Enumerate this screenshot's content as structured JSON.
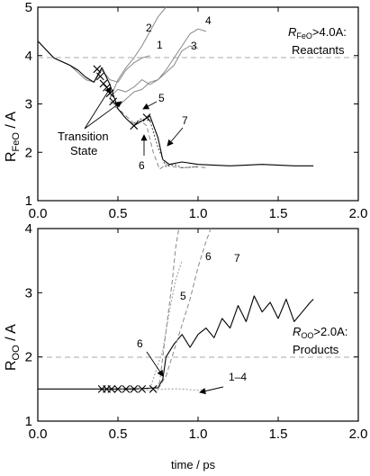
{
  "chart_data": [
    {
      "type": "line",
      "ylabel": "R_FeO / A",
      "ylabel_main": "R",
      "ylabel_sub": "FeO",
      "ylabel_unit": " / A",
      "xlim": [
        0.0,
        2.0
      ],
      "ylim": [
        1,
        5
      ],
      "xticks": [
        "0.0",
        "0.5",
        "1.0",
        "1.5",
        "2.0"
      ],
      "yticks": [
        "1",
        "2",
        "3",
        "4",
        "5"
      ],
      "grid": false,
      "threshold": {
        "y": 4.0,
        "label_line1": "R_FeO>4.0A:",
        "label_line1_main": "R",
        "label_line1_sub": "FeO",
        "label_line1_rest": ">4.0A:",
        "label_line2": "Reactants"
      },
      "annotations": [
        {
          "text_lines": [
            "Transition",
            "State"
          ]
        },
        {
          "text": "1"
        },
        {
          "text": "2"
        },
        {
          "text": "3"
        },
        {
          "text": "4"
        },
        {
          "text": "5"
        },
        {
          "text": "6"
        },
        {
          "text": "7"
        }
      ],
      "transition_state_marks": [
        {
          "x": 0.37,
          "y": 3.72
        },
        {
          "x": 0.39,
          "y": 3.57
        },
        {
          "x": 0.41,
          "y": 3.42
        },
        {
          "x": 0.43,
          "y": 3.34
        },
        {
          "x": 0.45,
          "y": 3.22
        },
        {
          "x": 0.47,
          "y": 3.05
        },
        {
          "x": 0.6,
          "y": 2.55
        },
        {
          "x": 0.68,
          "y": 2.72
        }
      ],
      "series": [
        {
          "style": "solid-gray",
          "x": [
            0.0,
            0.1,
            0.2,
            0.3,
            0.35,
            0.4,
            0.45,
            0.5,
            0.55,
            0.6,
            0.65,
            0.7
          ],
          "y": [
            4.3,
            3.95,
            3.8,
            3.5,
            3.45,
            3.7,
            3.5,
            3.45,
            3.7,
            3.85,
            3.95,
            4.0
          ]
        },
        {
          "style": "solid-gray",
          "x": [
            0.45,
            0.5,
            0.55,
            0.6,
            0.65,
            0.7,
            0.75,
            0.8
          ],
          "y": [
            3.1,
            3.5,
            3.75,
            3.95,
            4.2,
            4.5,
            4.8,
            5.0
          ]
        },
        {
          "style": "solid-gray",
          "x": [
            0.45,
            0.5,
            0.55,
            0.6,
            0.65,
            0.7,
            0.75,
            0.8,
            0.85,
            0.9,
            0.95,
            1.0
          ],
          "y": [
            3.15,
            3.3,
            3.25,
            3.35,
            3.5,
            3.4,
            3.5,
            3.65,
            3.8,
            4.1,
            4.2,
            4.15
          ]
        },
        {
          "style": "solid-gray",
          "x": [
            0.45,
            0.5,
            0.55,
            0.6,
            0.65,
            0.7,
            0.75,
            0.8,
            0.85,
            0.9,
            0.95,
            1.0,
            1.05
          ],
          "y": [
            3.05,
            2.95,
            3.1,
            3.25,
            3.3,
            3.45,
            3.5,
            3.7,
            3.95,
            4.2,
            4.45,
            4.55,
            4.5
          ]
        },
        {
          "style": "dashed-gray",
          "x": [
            0.48,
            0.52,
            0.56,
            0.6,
            0.64,
            0.68,
            0.72,
            0.76,
            0.8,
            0.85,
            0.9,
            1.0,
            1.05
          ],
          "y": [
            2.95,
            2.85,
            2.72,
            2.6,
            2.65,
            2.55,
            2.0,
            1.65,
            1.75,
            1.7,
            1.68,
            1.7,
            1.68
          ]
        },
        {
          "style": "solid-black",
          "x": [
            0.0,
            0.1,
            0.2,
            0.25,
            0.3,
            0.35,
            0.4,
            0.45,
            0.5,
            0.55,
            0.6,
            0.65,
            0.7,
            0.75,
            0.78,
            0.82,
            0.9,
            1.0,
            1.2,
            1.4,
            1.6,
            1.72
          ],
          "y": [
            4.3,
            3.95,
            3.8,
            3.7,
            3.55,
            3.45,
            3.75,
            3.4,
            2.9,
            2.7,
            2.55,
            2.65,
            2.75,
            2.3,
            1.85,
            1.75,
            1.8,
            1.75,
            1.72,
            1.75,
            1.72,
            1.72
          ]
        },
        {
          "style": "dotted-black",
          "x": [
            0.6,
            0.65,
            0.7,
            0.75,
            0.8,
            0.85,
            0.9,
            1.0
          ],
          "y": [
            2.6,
            2.7,
            2.65,
            2.1,
            1.7,
            1.75,
            1.68,
            1.7
          ]
        }
      ]
    },
    {
      "type": "line",
      "ylabel": "R_OO / A",
      "ylabel_main": "R",
      "ylabel_sub": "OO",
      "ylabel_unit": " / A",
      "xlabel": "time / ps",
      "xlim": [
        0.0,
        2.0
      ],
      "ylim": [
        1,
        4
      ],
      "xticks": [
        "0.0",
        "0.5",
        "1.0",
        "1.5",
        "2.0"
      ],
      "yticks": [
        "1",
        "2",
        "3",
        "4"
      ],
      "grid": false,
      "threshold": {
        "y": 2.0,
        "label_line1": "R_OO>2.0A:",
        "label_line1_main": "R",
        "label_line1_sub": "OO",
        "label_line1_rest": ">2.0A:",
        "label_line2": "Products"
      },
      "annotations": [
        {
          "text": "1–4"
        },
        {
          "text": "5"
        },
        {
          "text": "6"
        },
        {
          "text": "6"
        },
        {
          "text": "7"
        }
      ],
      "transition_state_marks": [
        {
          "x": 0.4,
          "y": 1.5
        },
        {
          "x": 0.43,
          "y": 1.5
        },
        {
          "x": 0.46,
          "y": 1.5
        },
        {
          "x": 0.5,
          "y": 1.5
        },
        {
          "x": 0.55,
          "y": 1.5
        },
        {
          "x": 0.6,
          "y": 1.5
        },
        {
          "x": 0.65,
          "y": 1.5
        },
        {
          "x": 0.72,
          "y": 1.5
        }
      ],
      "series": [
        {
          "style": "solid-black",
          "x": [
            0.0,
            0.2,
            0.4,
            0.6,
            0.75,
            0.78,
            0.8,
            0.85,
            0.9,
            0.95,
            1.0,
            1.05,
            1.1,
            1.15,
            1.2,
            1.25,
            1.3,
            1.35,
            1.4,
            1.45,
            1.5,
            1.55,
            1.6,
            1.65,
            1.7,
            1.72
          ],
          "y": [
            1.5,
            1.5,
            1.5,
            1.5,
            1.52,
            1.65,
            2.0,
            2.2,
            2.35,
            2.15,
            2.35,
            2.45,
            2.3,
            2.6,
            2.45,
            2.8,
            2.55,
            2.95,
            2.7,
            2.85,
            2.6,
            2.9,
            2.55,
            2.7,
            2.85,
            2.9
          ]
        },
        {
          "style": "dashed-gray",
          "x": [
            0.72,
            0.76,
            0.78,
            0.8,
            0.82,
            0.84,
            0.86,
            0.88
          ],
          "y": [
            1.5,
            1.6,
            2.0,
            2.4,
            2.8,
            3.2,
            3.7,
            4.0
          ]
        },
        {
          "style": "dashed-gray",
          "x": [
            0.75,
            0.8,
            0.85,
            0.9,
            0.95,
            1.0,
            1.05,
            1.08
          ],
          "y": [
            1.5,
            1.7,
            2.1,
            2.5,
            2.9,
            3.4,
            3.8,
            4.0
          ]
        },
        {
          "style": "dotted-gray",
          "x": [
            0.7,
            0.78,
            0.82,
            0.86,
            0.9
          ],
          "y": [
            1.5,
            2.1,
            2.7,
            3.2,
            3.5
          ]
        },
        {
          "style": "dotted-gray",
          "x": [
            0.5,
            0.6,
            0.7,
            0.8,
            0.9,
            1.0,
            1.05
          ],
          "y": [
            1.5,
            1.52,
            1.48,
            1.5,
            1.5,
            1.48,
            1.5
          ]
        }
      ]
    }
  ]
}
